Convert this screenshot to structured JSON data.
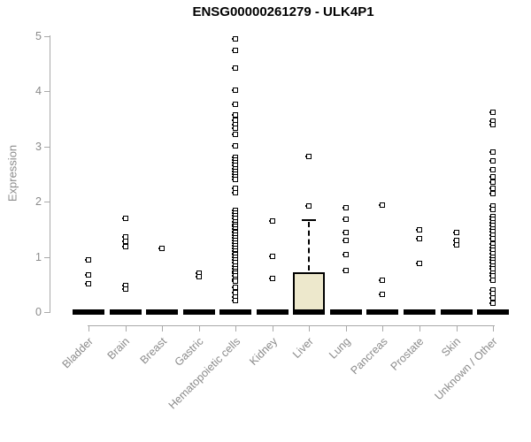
{
  "title": "ENSG00000261279 - ULK4P1",
  "chart_data": {
    "type": "boxplot",
    "title": "ENSG00000261279 - ULK4P1",
    "xlabel": "",
    "ylabel": "Expression",
    "ylim": [
      0,
      5
    ],
    "yticks": [
      0,
      1,
      2,
      3,
      4,
      5
    ],
    "grid": false,
    "legend": "none",
    "box_fill_color": "#ede8cc",
    "axis_color": "#a9a9a9",
    "text_color": "#8b8b8b",
    "point_color": "#000000",
    "point_style": "open-square",
    "categories": [
      "Bladder",
      "Brain",
      "Breast",
      "Gastric",
      "Hematopoietic cells",
      "Kidney",
      "Liver",
      "Lung",
      "Pancreas",
      "Prostate",
      "Skin",
      "Unknown / Other"
    ],
    "series": [
      {
        "category": "Bladder",
        "box": {
          "min": 0,
          "q1": 0,
          "median": 0,
          "q3": 0,
          "max": 0
        },
        "outliers": [
          0.94,
          0.67,
          0.51
        ]
      },
      {
        "category": "Brain",
        "box": {
          "min": 0,
          "q1": 0,
          "median": 0,
          "q3": 0,
          "max": 0
        },
        "outliers": [
          1.7,
          1.36,
          1.28,
          1.18,
          0.48,
          0.42
        ]
      },
      {
        "category": "Breast",
        "box": {
          "min": 0,
          "q1": 0,
          "median": 0,
          "q3": 0,
          "max": 0
        },
        "outliers": [
          1.15
        ]
      },
      {
        "category": "Gastric",
        "box": {
          "min": 0,
          "q1": 0,
          "median": 0,
          "q3": 0,
          "max": 0
        },
        "outliers": [
          0.71,
          0.64
        ]
      },
      {
        "category": "Hematopoietic cells",
        "box": {
          "min": 0,
          "q1": 0,
          "median": 0,
          "q3": 0,
          "max": 0
        },
        "outliers": [
          4.95,
          4.74,
          4.42,
          4.02,
          3.76,
          3.57,
          3.48,
          3.4,
          3.33,
          3.22,
          3.01,
          2.8,
          2.75,
          2.7,
          2.65,
          2.6,
          2.55,
          2.5,
          2.45,
          2.4,
          2.24,
          2.16,
          1.84,
          1.79,
          1.74,
          1.69,
          1.64,
          1.59,
          1.55,
          1.5,
          1.46,
          1.44,
          1.39,
          1.34,
          1.3,
          1.25,
          1.2,
          1.15,
          1.1,
          1.06,
          1.04,
          0.99,
          0.94,
          0.89,
          0.84,
          0.79,
          0.74,
          0.7,
          0.65,
          0.6,
          0.56,
          0.45,
          0.35,
          0.27,
          0.21
        ]
      },
      {
        "category": "Kidney",
        "box": {
          "min": 0,
          "q1": 0,
          "median": 0,
          "q3": 0,
          "max": 0
        },
        "outliers": [
          1.65,
          1.01,
          0.61
        ]
      },
      {
        "category": "Liver",
        "box": {
          "min": 0,
          "q1": 0,
          "median": 0,
          "q3": 0.72,
          "max": 1.66
        },
        "outliers": [
          2.82,
          1.92
        ]
      },
      {
        "category": "Lung",
        "box": {
          "min": 0,
          "q1": 0,
          "median": 0,
          "q3": 0,
          "max": 0
        },
        "outliers": [
          1.89,
          1.68,
          1.44,
          1.3,
          1.04,
          0.75
        ]
      },
      {
        "category": "Pancreas",
        "box": {
          "min": 0,
          "q1": 0,
          "median": 0,
          "q3": 0,
          "max": 0
        },
        "outliers": [
          1.93,
          0.58,
          0.32
        ]
      },
      {
        "category": "Prostate",
        "box": {
          "min": 0,
          "q1": 0,
          "median": 0,
          "q3": 0,
          "max": 0
        },
        "outliers": [
          1.49,
          1.33,
          0.88
        ]
      },
      {
        "category": "Skin",
        "box": {
          "min": 0,
          "q1": 0,
          "median": 0,
          "q3": 0,
          "max": 0
        },
        "outliers": [
          1.44,
          1.3,
          1.21
        ]
      },
      {
        "category": "Unknown / Other",
        "box": {
          "min": 0,
          "q1": 0,
          "median": 0,
          "q3": 0,
          "max": 0
        },
        "outliers": [
          3.62,
          3.46,
          3.4,
          2.9,
          2.74,
          2.58,
          2.45,
          2.35,
          2.24,
          2.14,
          1.92,
          1.85,
          1.73,
          1.68,
          1.62,
          1.57,
          1.51,
          1.46,
          1.4,
          1.33,
          1.24,
          1.17,
          1.12,
          1.06,
          1.0,
          0.95,
          0.89,
          0.84,
          0.78,
          0.71,
          0.65,
          0.58,
          0.4,
          0.33,
          0.26,
          0.16
        ]
      }
    ]
  }
}
